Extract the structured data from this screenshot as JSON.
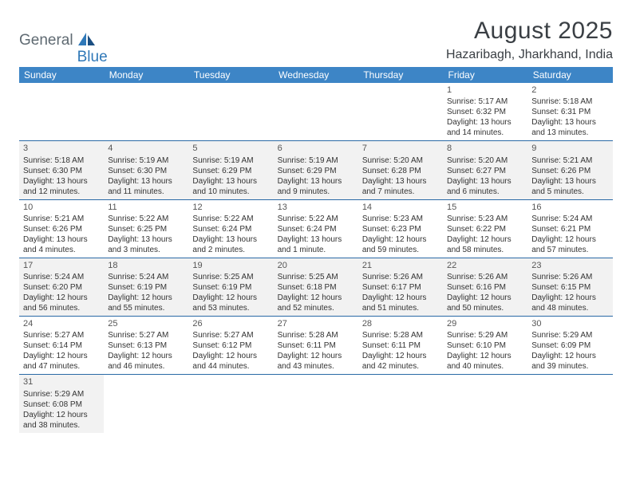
{
  "logo": {
    "text1": "General",
    "text2": "Blue"
  },
  "title": "August 2025",
  "location": "Hazaribagh, Jharkhand, India",
  "colors": {
    "header_bg": "#3d85c6",
    "header_text": "#ffffff",
    "row_border": "#2a6aa6",
    "alt_row_bg": "#f2f2f2",
    "page_bg": "#ffffff",
    "title_color": "#3a3f44",
    "logo_gray": "#5f6a72",
    "logo_blue": "#2f78b8"
  },
  "weekdays": [
    "Sunday",
    "Monday",
    "Tuesday",
    "Wednesday",
    "Thursday",
    "Friday",
    "Saturday"
  ],
  "weeks": [
    [
      null,
      null,
      null,
      null,
      null,
      {
        "n": "1",
        "sr": "Sunrise: 5:17 AM",
        "ss": "Sunset: 6:32 PM",
        "d1": "Daylight: 13 hours",
        "d2": "and 14 minutes."
      },
      {
        "n": "2",
        "sr": "Sunrise: 5:18 AM",
        "ss": "Sunset: 6:31 PM",
        "d1": "Daylight: 13 hours",
        "d2": "and 13 minutes."
      }
    ],
    [
      {
        "n": "3",
        "sr": "Sunrise: 5:18 AM",
        "ss": "Sunset: 6:30 PM",
        "d1": "Daylight: 13 hours",
        "d2": "and 12 minutes."
      },
      {
        "n": "4",
        "sr": "Sunrise: 5:19 AM",
        "ss": "Sunset: 6:30 PM",
        "d1": "Daylight: 13 hours",
        "d2": "and 11 minutes."
      },
      {
        "n": "5",
        "sr": "Sunrise: 5:19 AM",
        "ss": "Sunset: 6:29 PM",
        "d1": "Daylight: 13 hours",
        "d2": "and 10 minutes."
      },
      {
        "n": "6",
        "sr": "Sunrise: 5:19 AM",
        "ss": "Sunset: 6:29 PM",
        "d1": "Daylight: 13 hours",
        "d2": "and 9 minutes."
      },
      {
        "n": "7",
        "sr": "Sunrise: 5:20 AM",
        "ss": "Sunset: 6:28 PM",
        "d1": "Daylight: 13 hours",
        "d2": "and 7 minutes."
      },
      {
        "n": "8",
        "sr": "Sunrise: 5:20 AM",
        "ss": "Sunset: 6:27 PM",
        "d1": "Daylight: 13 hours",
        "d2": "and 6 minutes."
      },
      {
        "n": "9",
        "sr": "Sunrise: 5:21 AM",
        "ss": "Sunset: 6:26 PM",
        "d1": "Daylight: 13 hours",
        "d2": "and 5 minutes."
      }
    ],
    [
      {
        "n": "10",
        "sr": "Sunrise: 5:21 AM",
        "ss": "Sunset: 6:26 PM",
        "d1": "Daylight: 13 hours",
        "d2": "and 4 minutes."
      },
      {
        "n": "11",
        "sr": "Sunrise: 5:22 AM",
        "ss": "Sunset: 6:25 PM",
        "d1": "Daylight: 13 hours",
        "d2": "and 3 minutes."
      },
      {
        "n": "12",
        "sr": "Sunrise: 5:22 AM",
        "ss": "Sunset: 6:24 PM",
        "d1": "Daylight: 13 hours",
        "d2": "and 2 minutes."
      },
      {
        "n": "13",
        "sr": "Sunrise: 5:22 AM",
        "ss": "Sunset: 6:24 PM",
        "d1": "Daylight: 13 hours",
        "d2": "and 1 minute."
      },
      {
        "n": "14",
        "sr": "Sunrise: 5:23 AM",
        "ss": "Sunset: 6:23 PM",
        "d1": "Daylight: 12 hours",
        "d2": "and 59 minutes."
      },
      {
        "n": "15",
        "sr": "Sunrise: 5:23 AM",
        "ss": "Sunset: 6:22 PM",
        "d1": "Daylight: 12 hours",
        "d2": "and 58 minutes."
      },
      {
        "n": "16",
        "sr": "Sunrise: 5:24 AM",
        "ss": "Sunset: 6:21 PM",
        "d1": "Daylight: 12 hours",
        "d2": "and 57 minutes."
      }
    ],
    [
      {
        "n": "17",
        "sr": "Sunrise: 5:24 AM",
        "ss": "Sunset: 6:20 PM",
        "d1": "Daylight: 12 hours",
        "d2": "and 56 minutes."
      },
      {
        "n": "18",
        "sr": "Sunrise: 5:24 AM",
        "ss": "Sunset: 6:19 PM",
        "d1": "Daylight: 12 hours",
        "d2": "and 55 minutes."
      },
      {
        "n": "19",
        "sr": "Sunrise: 5:25 AM",
        "ss": "Sunset: 6:19 PM",
        "d1": "Daylight: 12 hours",
        "d2": "and 53 minutes."
      },
      {
        "n": "20",
        "sr": "Sunrise: 5:25 AM",
        "ss": "Sunset: 6:18 PM",
        "d1": "Daylight: 12 hours",
        "d2": "and 52 minutes."
      },
      {
        "n": "21",
        "sr": "Sunrise: 5:26 AM",
        "ss": "Sunset: 6:17 PM",
        "d1": "Daylight: 12 hours",
        "d2": "and 51 minutes."
      },
      {
        "n": "22",
        "sr": "Sunrise: 5:26 AM",
        "ss": "Sunset: 6:16 PM",
        "d1": "Daylight: 12 hours",
        "d2": "and 50 minutes."
      },
      {
        "n": "23",
        "sr": "Sunrise: 5:26 AM",
        "ss": "Sunset: 6:15 PM",
        "d1": "Daylight: 12 hours",
        "d2": "and 48 minutes."
      }
    ],
    [
      {
        "n": "24",
        "sr": "Sunrise: 5:27 AM",
        "ss": "Sunset: 6:14 PM",
        "d1": "Daylight: 12 hours",
        "d2": "and 47 minutes."
      },
      {
        "n": "25",
        "sr": "Sunrise: 5:27 AM",
        "ss": "Sunset: 6:13 PM",
        "d1": "Daylight: 12 hours",
        "d2": "and 46 minutes."
      },
      {
        "n": "26",
        "sr": "Sunrise: 5:27 AM",
        "ss": "Sunset: 6:12 PM",
        "d1": "Daylight: 12 hours",
        "d2": "and 44 minutes."
      },
      {
        "n": "27",
        "sr": "Sunrise: 5:28 AM",
        "ss": "Sunset: 6:11 PM",
        "d1": "Daylight: 12 hours",
        "d2": "and 43 minutes."
      },
      {
        "n": "28",
        "sr": "Sunrise: 5:28 AM",
        "ss": "Sunset: 6:11 PM",
        "d1": "Daylight: 12 hours",
        "d2": "and 42 minutes."
      },
      {
        "n": "29",
        "sr": "Sunrise: 5:29 AM",
        "ss": "Sunset: 6:10 PM",
        "d1": "Daylight: 12 hours",
        "d2": "and 40 minutes."
      },
      {
        "n": "30",
        "sr": "Sunrise: 5:29 AM",
        "ss": "Sunset: 6:09 PM",
        "d1": "Daylight: 12 hours",
        "d2": "and 39 minutes."
      }
    ],
    [
      {
        "n": "31",
        "sr": "Sunrise: 5:29 AM",
        "ss": "Sunset: 6:08 PM",
        "d1": "Daylight: 12 hours",
        "d2": "and 38 minutes."
      },
      null,
      null,
      null,
      null,
      null,
      null
    ]
  ]
}
